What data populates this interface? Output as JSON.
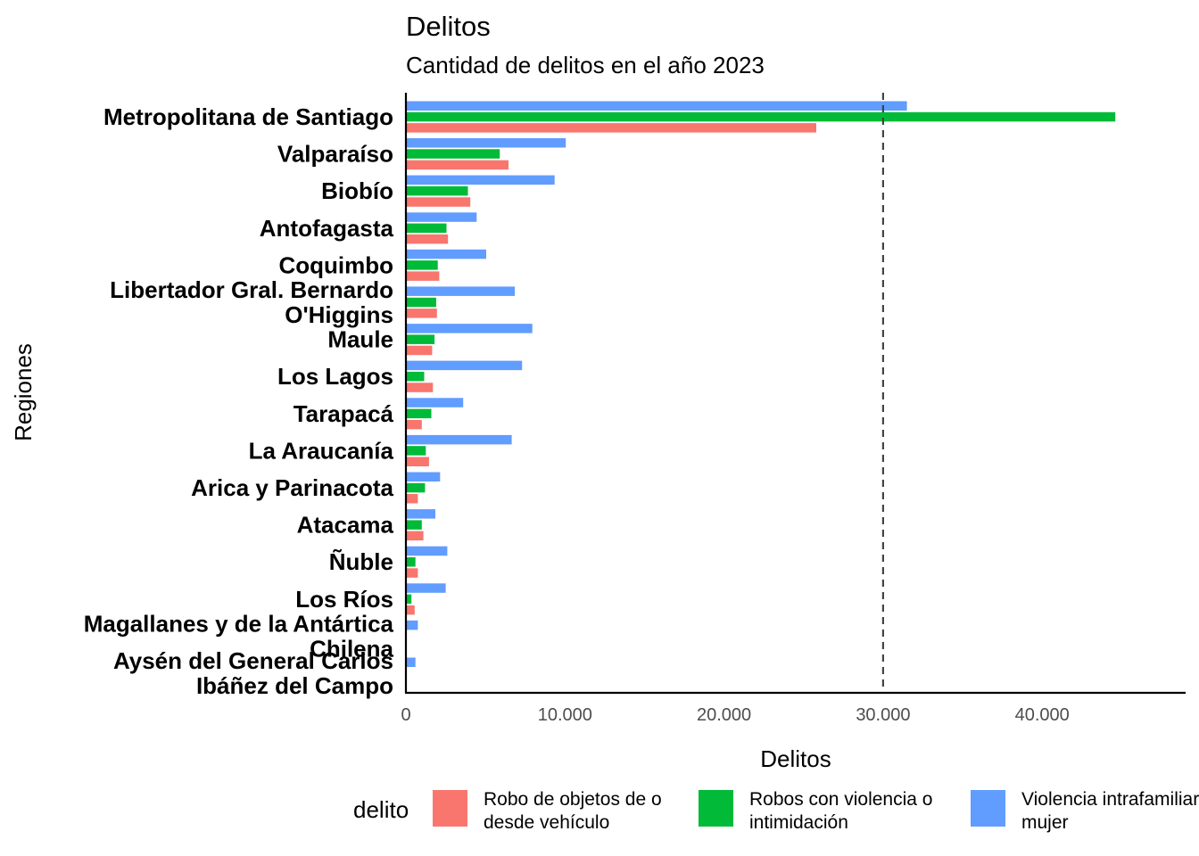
{
  "chart_data": {
    "type": "bar",
    "orientation": "horizontal",
    "title": "Delitos",
    "subtitle": "Cantidad de delitos en el año 2023",
    "xlabel": "Delitos",
    "ylabel": "Regiones",
    "xlim": [
      0,
      49000
    ],
    "xticks": [
      0,
      10000,
      20000,
      30000,
      40000
    ],
    "xtick_labels": [
      "0",
      "10.000",
      "20.000",
      "30.000",
      "40.000"
    ],
    "reference_line": 30000,
    "grid": false,
    "legend_position": "bottom",
    "legend_title": "delito",
    "categories": [
      "Metropolitana de Santiago",
      "Valparaíso",
      "Biobío",
      "Antofagasta",
      "Coquimbo",
      "Libertador Gral. Bernardo O'Higgins",
      "Maule",
      "Los Lagos",
      "Tarapacá",
      "La Araucanía",
      "Arica y Parinacota",
      "Atacama",
      "Ñuble",
      "Los Ríos",
      "Magallanes y de la Antártica Chilena",
      "Aysén del General Carlos Ibáñez del Campo"
    ],
    "category_lines": [
      [
        "Metropolitana de Santiago"
      ],
      [
        "Valparaíso"
      ],
      [
        "Biobío"
      ],
      [
        "Antofagasta"
      ],
      [
        "Coquimbo"
      ],
      [
        "Libertador Gral. Bernardo",
        "O'Higgins"
      ],
      [
        "Maule"
      ],
      [
        "Los Lagos"
      ],
      [
        "Tarapacá"
      ],
      [
        "La Araucanía"
      ],
      [
        "Arica y Parinacota"
      ],
      [
        "Atacama"
      ],
      [
        "Ñuble"
      ],
      [
        "Los Ríos"
      ],
      [
        "Magallanes y de la Antártica",
        "Chilena"
      ],
      [
        "Aysén del General Carlos",
        "Ibáñez del Campo"
      ]
    ],
    "series": [
      {
        "name": "Robo de objetos de o desde vehículo",
        "legend_lines": [
          "Robo de objetos de o",
          "desde vehículo"
        ],
        "color": "#F8766D",
        "values": [
          25800,
          6450,
          4050,
          2650,
          2100,
          1950,
          1650,
          1700,
          1000,
          1450,
          750,
          1100,
          750,
          550,
          0,
          0
        ]
      },
      {
        "name": "Robos con violencia o intimidación",
        "legend_lines": [
          "Robos con violencia o",
          "intimidación"
        ],
        "color": "#00BA38",
        "values": [
          44600,
          5900,
          3900,
          2550,
          2000,
          1900,
          1800,
          1150,
          1600,
          1250,
          1200,
          1000,
          600,
          350,
          0,
          0
        ]
      },
      {
        "name": "Violencia intrafamiliar a mujer",
        "legend_lines": [
          "Violencia intrafamiliar a",
          "mujer"
        ],
        "color": "#619CFF",
        "values": [
          31500,
          10050,
          9350,
          4450,
          5050,
          6850,
          7950,
          7300,
          3600,
          6650,
          2150,
          1850,
          2600,
          2500,
          750,
          600
        ]
      }
    ]
  }
}
